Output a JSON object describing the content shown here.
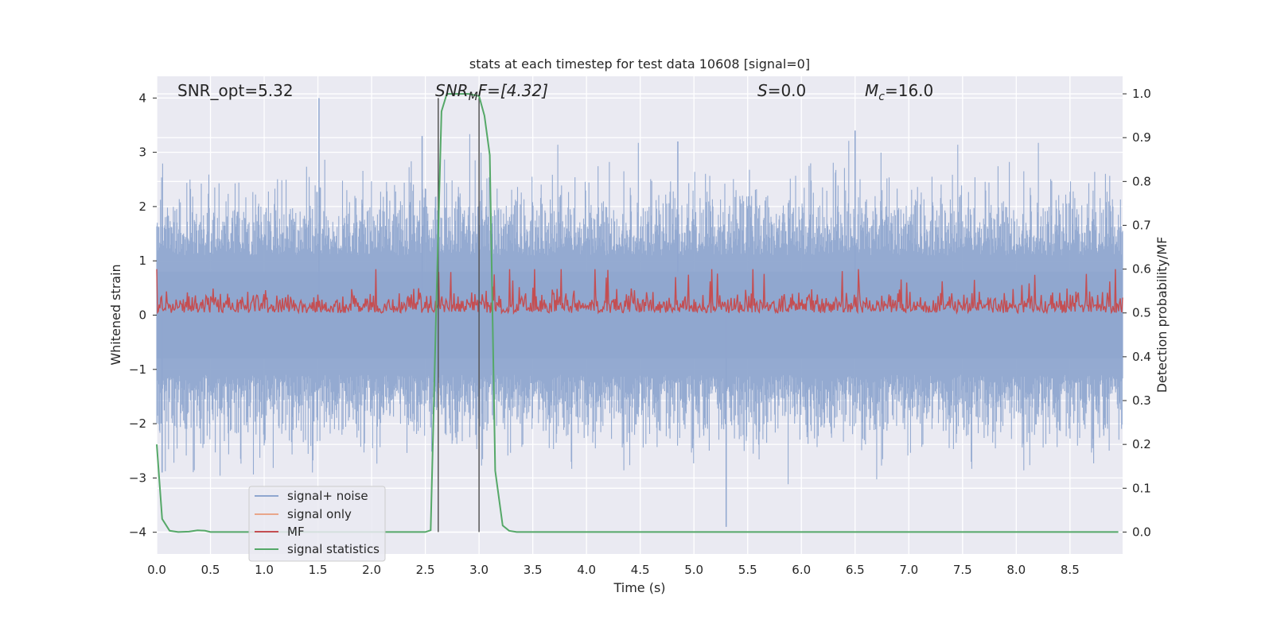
{
  "chart_data": {
    "type": "line",
    "title": "stats at each timestep for test data 10608 [signal=0]",
    "xlabel": "Time (s)",
    "ylabel_left": "Whitened strain",
    "ylabel_right": "Detection probability/MF",
    "xlim": [
      0.0,
      8.99
    ],
    "ylim_left": [
      -4.4,
      4.4
    ],
    "ylim_right": [
      -0.05,
      1.04
    ],
    "xticks": [
      "0.0",
      "0.5",
      "1.0",
      "1.5",
      "2.0",
      "2.5",
      "3.0",
      "3.5",
      "4.0",
      "4.5",
      "5.0",
      "5.5",
      "6.0",
      "6.5",
      "7.0",
      "7.5",
      "8.0",
      "8.5"
    ],
    "yticks_left": [
      "4",
      "3",
      "2",
      "1",
      "0",
      "−1",
      "−2",
      "−3",
      "−4"
    ],
    "yticks_right": [
      "1.0",
      "0.9",
      "0.8",
      "0.7",
      "0.6",
      "0.5",
      "0.4",
      "0.3",
      "0.2",
      "0.1",
      "0.0"
    ],
    "grid": true,
    "legend_position": "lower-left",
    "annotations": {
      "snr_opt": "SNR_opt=5.32",
      "snr_mf_main": "SNR",
      "snr_mf_sub": "M",
      "snr_mf_rest": "F=[4.32]",
      "s_main": "S",
      "s_rest": "=0.0",
      "mc_main": "M",
      "mc_sub": "c",
      "mc_rest": "=16.0"
    },
    "vertical_lines_x": [
      2.62,
      3.0
    ],
    "series": [
      {
        "name": "signal+ noise",
        "color": "#8fa6cf",
        "axis": "left",
        "description_values": {
          "envelope_upper_typical": 2.0,
          "envelope_lower_typical": -2.0,
          "max": 4.0,
          "min": -3.9
        }
      },
      {
        "name": "signal only",
        "color": "#e9a68a",
        "axis": "left",
        "values": [
          0,
          0
        ]
      },
      {
        "name": "MF",
        "color": "#c44e52",
        "axis": "right",
        "description_values": {
          "baseline": 0.5,
          "typical_peak": 0.57,
          "max": 0.6
        }
      },
      {
        "name": "signal statistics",
        "color": "#55a868",
        "axis": "right",
        "x": [
          0.0,
          0.05,
          0.12,
          0.2,
          0.3,
          0.38,
          0.45,
          0.5,
          0.6,
          1.0,
          1.5,
          2.0,
          2.3,
          2.5,
          2.55,
          2.6,
          2.65,
          2.7,
          2.8,
          2.9,
          3.0,
          3.05,
          3.1,
          3.15,
          3.22,
          3.28,
          3.35,
          4.0,
          5.0,
          6.0,
          7.0,
          8.0,
          8.95
        ],
        "values": [
          0.2,
          0.03,
          0.003,
          0.0,
          0.001,
          0.004,
          0.003,
          0.0,
          0.0,
          0.0,
          0.0,
          0.0,
          0.0,
          0.0,
          0.004,
          0.5,
          0.96,
          1.0,
          1.0,
          1.0,
          0.995,
          0.95,
          0.86,
          0.14,
          0.015,
          0.003,
          0.0,
          0.0,
          0.0,
          0.0,
          0.0,
          0.0,
          0.0
        ]
      }
    ]
  }
}
